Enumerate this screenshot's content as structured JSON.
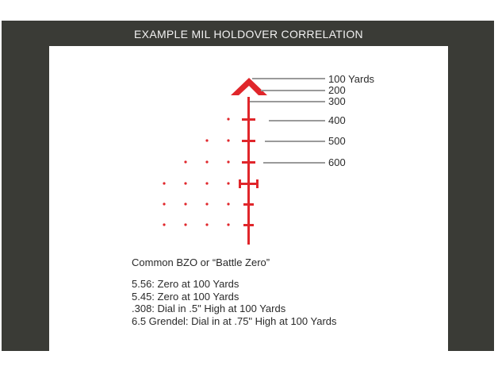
{
  "title": "EXAMPLE MIL HOLDOVER CORRELATION",
  "colors": {
    "frame": "#3a3b36",
    "reticle": "#e0262b",
    "leader": "#9a9a9a",
    "text": "#2a2a2a"
  },
  "range_labels": [
    "100 Yards",
    "200",
    "300",
    "400",
    "500",
    "600"
  ],
  "bzo_heading": "Common BZO or “Battle Zero”",
  "notes": [
    "5.56: Zero at 100 Yards",
    "5.45: Zero at 100 Yards",
    ".308: Dial in .5\" High at 100 Yards",
    "6.5 Grendel: Dial in at .75\" High at 100 Yards"
  ]
}
